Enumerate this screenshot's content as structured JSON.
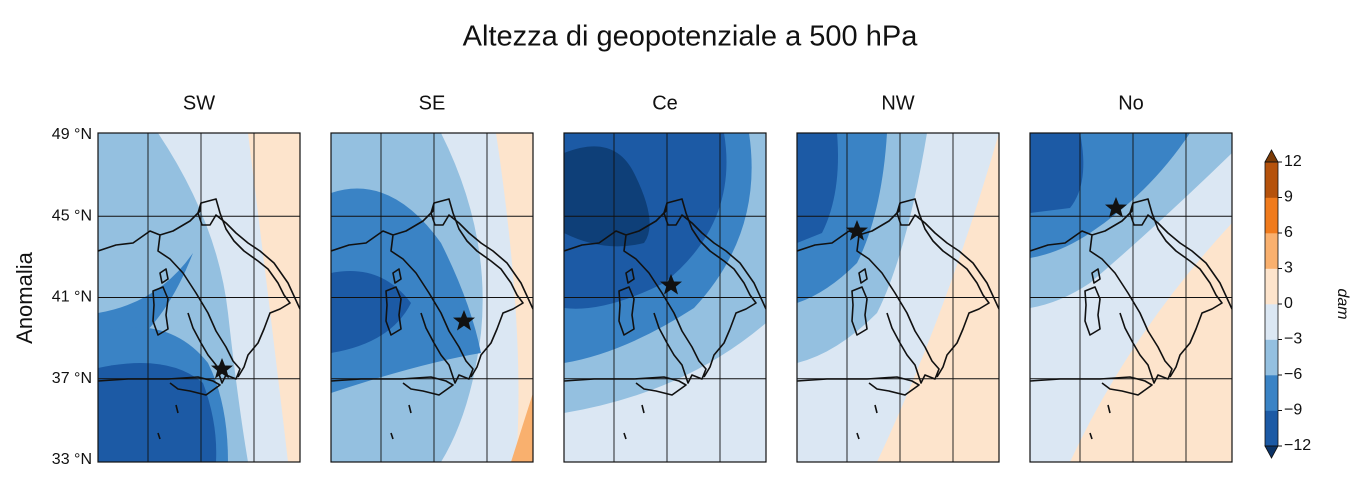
{
  "title": "Altezza di geopotenziale a 500 hPa",
  "ylabel": "Anomalia",
  "panels": [
    "SW",
    "SE",
    "Ce",
    "NW",
    "No"
  ],
  "lat_lim": [
    33,
    49
  ],
  "lat_ticks": [
    {
      "value": 49,
      "label": "49 °N"
    },
    {
      "value": 45,
      "label": "45 °N"
    },
    {
      "value": 41,
      "label": "41 °N"
    },
    {
      "value": 37,
      "label": "37 °N"
    },
    {
      "value": 33,
      "label": "33 °N"
    }
  ],
  "colorbar": {
    "label": "dam",
    "lim": [
      -12,
      12
    ],
    "ticks": [
      12,
      9,
      6,
      3,
      0,
      {
        "value": -3,
        "label": "−3"
      },
      {
        "value": -6,
        "label": "−6"
      },
      {
        "value": -9,
        "label": "−9"
      },
      {
        "value": -12,
        "label": "−12"
      }
    ],
    "colors": [
      "#1c5aa5",
      "#3a83c5",
      "#94c0e0",
      "#dbe7f3",
      "#fde4cc",
      "#f9b06e",
      "#f07b1d",
      "#b5520c"
    ]
  }
}
